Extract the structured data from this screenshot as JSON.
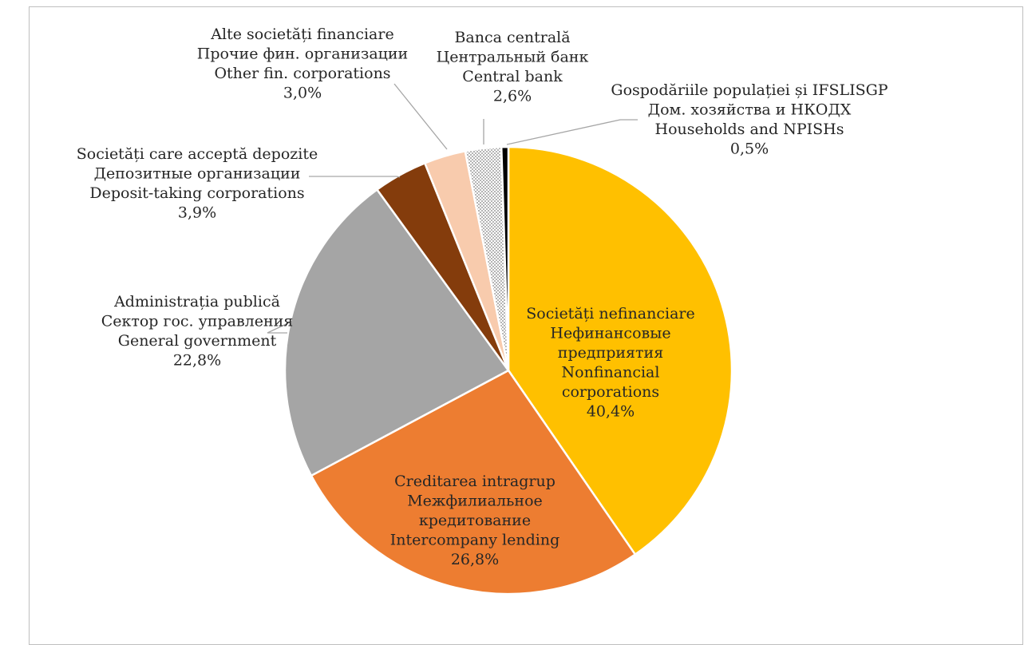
{
  "chart_data": {
    "type": "pie",
    "slices": [
      {
        "label": [
          "Societăți nefinanciare",
          "Нефинансовые",
          "предприятия",
          "Nonfinancial",
          "corporations"
        ],
        "value_label": "40,4%",
        "value": 40.4,
        "color": "#FFC000"
      },
      {
        "label": [
          "Creditarea intragrup",
          "Межфилиальное",
          "кредитование",
          "Intercompany lending"
        ],
        "value_label": "26,8%",
        "value": 26.8,
        "color": "#ED7D31"
      },
      {
        "label": [
          "Administrația publică",
          "Сектор гос. управления",
          "General government"
        ],
        "value_label": "22,8%",
        "value": 22.8,
        "color": "#A5A5A5"
      },
      {
        "label": [
          "Societăți care acceptă depozite",
          "Депозитные организации",
          "Deposit-taking corporations"
        ],
        "value_label": "3,9%",
        "value": 3.9,
        "color": "#843C0C"
      },
      {
        "label": [
          "Alte societăți financiare",
          "Прочие фин. организации",
          "Other fin. corporations"
        ],
        "value_label": "3,0%",
        "value": 3.0,
        "color": "#F8CBAD"
      },
      {
        "label": [
          "Banca centrală",
          "Центральный банк",
          "Central bank"
        ],
        "value_label": "2,6%",
        "value": 2.6,
        "color": "#A5A5A5",
        "pattern": "dotted"
      },
      {
        "label": [
          "Gospodăriile populației și IFSLISGP",
          "Дом. хозяйства и НКОДХ",
          "Households and NPISHs"
        ],
        "value_label": "0,5%",
        "value": 0.5,
        "color": "#000000"
      }
    ],
    "start_angle": "12 o'clock",
    "direction": "clockwise",
    "legend": "none (callout labels)"
  }
}
